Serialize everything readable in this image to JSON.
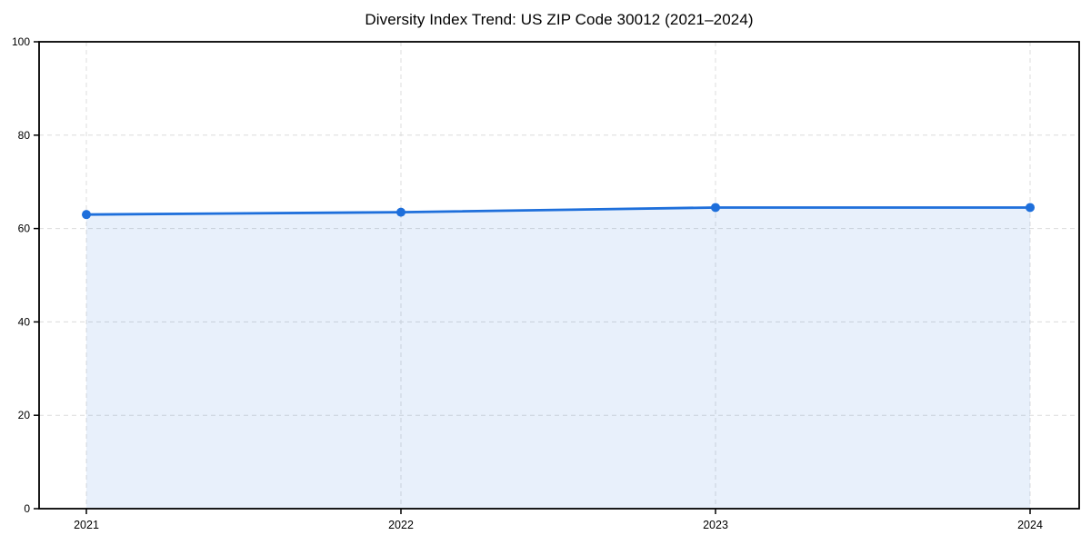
{
  "chart_data": {
    "type": "area",
    "title": "Diversity Index Trend: US ZIP Code 30012 (2021–2024)",
    "x": [
      2021,
      2022,
      2023,
      2024
    ],
    "xtick_labels": [
      "2021",
      "2022",
      "2023",
      "2024"
    ],
    "series": [
      {
        "name": "Diversity Index",
        "values": [
          63,
          63.5,
          64.5,
          64.5
        ]
      }
    ],
    "xlabel": "",
    "ylabel": "",
    "ylim": [
      0,
      100
    ],
    "yticks": [
      0,
      20,
      40,
      60,
      80,
      100
    ],
    "ytick_labels": [
      "0",
      "20",
      "40",
      "60",
      "80",
      "100"
    ],
    "grid": true,
    "grid_style": "dashed",
    "legend": "none",
    "colors": {
      "line": "#1E6FDB",
      "marker": "#1E6FDB",
      "fill": "#1E6FDB",
      "fill_opacity": 0.1,
      "grid": "#DCDCDC",
      "axis": "#000000",
      "text": "#000000",
      "background": "#FFFFFF"
    }
  }
}
